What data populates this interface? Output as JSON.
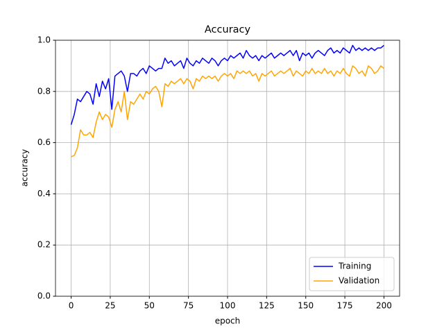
{
  "chart_data": {
    "type": "line",
    "title": "Accuracy",
    "xlabel": "epoch",
    "ylabel": "accuracy",
    "x": [
      0,
      2,
      4,
      6,
      8,
      10,
      12,
      14,
      16,
      18,
      20,
      22,
      24,
      26,
      28,
      30,
      32,
      34,
      36,
      38,
      40,
      42,
      44,
      46,
      48,
      50,
      52,
      54,
      56,
      58,
      60,
      62,
      64,
      66,
      68,
      70,
      72,
      74,
      76,
      78,
      80,
      82,
      84,
      86,
      88,
      90,
      92,
      94,
      96,
      98,
      100,
      102,
      104,
      106,
      108,
      110,
      112,
      114,
      116,
      118,
      120,
      122,
      124,
      126,
      128,
      130,
      132,
      134,
      136,
      138,
      140,
      142,
      144,
      146,
      148,
      150,
      152,
      154,
      156,
      158,
      160,
      162,
      164,
      166,
      168,
      170,
      172,
      174,
      176,
      178,
      180,
      182,
      184,
      186,
      188,
      190,
      192,
      194,
      196,
      198,
      200
    ],
    "series": [
      {
        "name": "Training",
        "color": "#0000ff",
        "values": [
          0.67,
          0.71,
          0.77,
          0.76,
          0.78,
          0.8,
          0.79,
          0.75,
          0.83,
          0.78,
          0.84,
          0.81,
          0.85,
          0.73,
          0.86,
          0.87,
          0.88,
          0.86,
          0.8,
          0.87,
          0.87,
          0.86,
          0.88,
          0.89,
          0.87,
          0.9,
          0.89,
          0.88,
          0.89,
          0.89,
          0.93,
          0.91,
          0.92,
          0.9,
          0.91,
          0.92,
          0.89,
          0.93,
          0.91,
          0.9,
          0.92,
          0.91,
          0.93,
          0.92,
          0.91,
          0.93,
          0.92,
          0.9,
          0.92,
          0.93,
          0.92,
          0.94,
          0.93,
          0.94,
          0.95,
          0.93,
          0.96,
          0.94,
          0.93,
          0.94,
          0.92,
          0.94,
          0.93,
          0.94,
          0.95,
          0.93,
          0.94,
          0.95,
          0.94,
          0.95,
          0.96,
          0.94,
          0.96,
          0.92,
          0.95,
          0.94,
          0.95,
          0.93,
          0.95,
          0.96,
          0.95,
          0.94,
          0.96,
          0.97,
          0.95,
          0.96,
          0.95,
          0.97,
          0.96,
          0.95,
          0.98,
          0.96,
          0.97,
          0.96,
          0.97,
          0.96,
          0.97,
          0.96,
          0.97,
          0.97,
          0.98
        ]
      },
      {
        "name": "Validation",
        "color": "#ffa500",
        "values": [
          0.545,
          0.55,
          0.58,
          0.65,
          0.63,
          0.63,
          0.64,
          0.62,
          0.68,
          0.72,
          0.69,
          0.71,
          0.7,
          0.66,
          0.73,
          0.76,
          0.72,
          0.8,
          0.69,
          0.76,
          0.75,
          0.77,
          0.79,
          0.77,
          0.8,
          0.79,
          0.81,
          0.82,
          0.8,
          0.74,
          0.83,
          0.82,
          0.84,
          0.83,
          0.84,
          0.85,
          0.83,
          0.85,
          0.84,
          0.81,
          0.85,
          0.84,
          0.86,
          0.85,
          0.86,
          0.85,
          0.86,
          0.84,
          0.86,
          0.87,
          0.86,
          0.87,
          0.85,
          0.88,
          0.87,
          0.88,
          0.87,
          0.88,
          0.86,
          0.87,
          0.84,
          0.87,
          0.86,
          0.87,
          0.88,
          0.86,
          0.87,
          0.88,
          0.87,
          0.88,
          0.89,
          0.86,
          0.88,
          0.87,
          0.86,
          0.88,
          0.87,
          0.89,
          0.87,
          0.88,
          0.87,
          0.89,
          0.87,
          0.88,
          0.86,
          0.88,
          0.87,
          0.89,
          0.87,
          0.86,
          0.9,
          0.89,
          0.87,
          0.88,
          0.86,
          0.9,
          0.89,
          0.87,
          0.88,
          0.9,
          0.89
        ]
      }
    ],
    "xlim": [
      -10,
      210
    ],
    "xticks": [
      0,
      25,
      50,
      75,
      100,
      125,
      150,
      175,
      200
    ],
    "ylim": [
      0,
      1
    ],
    "yticks": [
      {
        "value": 0,
        "label": "0.0"
      },
      {
        "value": 0.2,
        "label": "0.2"
      },
      {
        "value": 0.4,
        "label": "0.4"
      },
      {
        "value": 0.6,
        "label": "0.6"
      },
      {
        "value": 0.8,
        "label": "0.8"
      },
      {
        "value": 1,
        "label": "1.0"
      }
    ],
    "grid": true,
    "legend": "lower right"
  }
}
